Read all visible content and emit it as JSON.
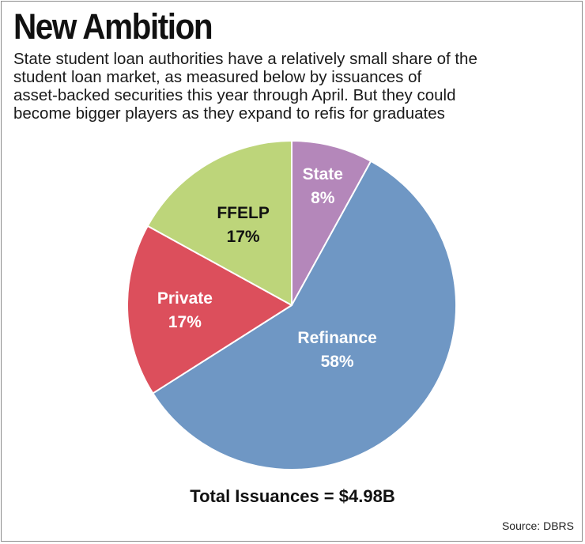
{
  "header": {
    "title": "New Ambition",
    "subtitle_lines": [
      "State student loan authorities have a relatively small share of the",
      "student loan market, as measured below by issuances of",
      "asset-backed securities this year through April. But they could",
      "become bigger players as they expand to refis for graduates"
    ]
  },
  "chart_data": {
    "type": "pie",
    "title": "New Ambition",
    "slices": [
      {
        "label": "State",
        "value": 8,
        "value_label": "8%",
        "color": "#b487ba",
        "text_color": "#ffffff"
      },
      {
        "label": "Refinance",
        "value": 58,
        "value_label": "58%",
        "color": "#6f97c4",
        "text_color": "#ffffff"
      },
      {
        "label": "Private",
        "value": 17,
        "value_label": "17%",
        "color": "#dc4f5c",
        "text_color": "#ffffff"
      },
      {
        "label": "FFELP",
        "value": 17,
        "value_label": "17%",
        "color": "#bdd57a",
        "text_color": "#111111"
      }
    ],
    "start": "12 o'clock",
    "direction": "clockwise"
  },
  "footer": {
    "total": "Total Issuances = $4.98B",
    "source": "Source: DBRS"
  },
  "colors": {
    "border": "#8c8c8c",
    "text": "#111111",
    "slice_stroke": "#ffffff"
  }
}
